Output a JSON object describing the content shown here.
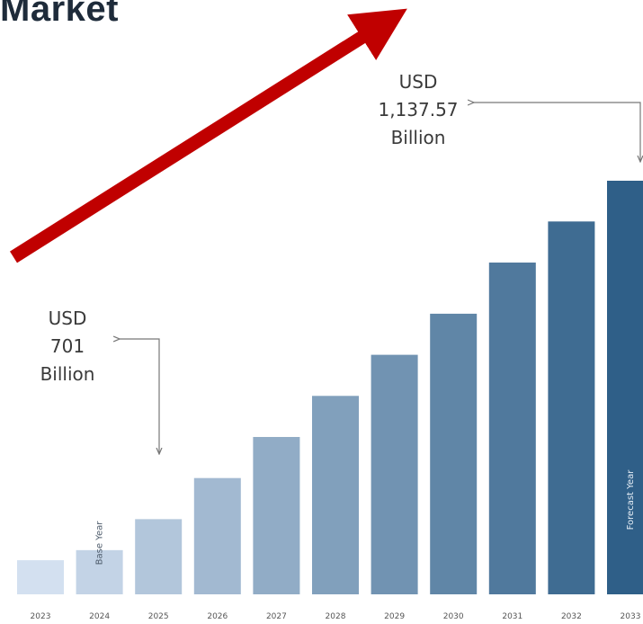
{
  "title": "Market",
  "colors": {
    "arrow": "#c00000",
    "bar_start": "#d3e0f0",
    "bar_end": "#2f5f88",
    "connector": "#777777"
  },
  "chart_data": {
    "type": "bar",
    "title": "Market",
    "xlabel": "",
    "ylabel": "",
    "categories": [
      "2023",
      "2024",
      "2025",
      "2026",
      "2027",
      "2028",
      "2029",
      "2030",
      "2031",
      "2032",
      "2033"
    ],
    "values": [
      648,
      661,
      701,
      754,
      807,
      860,
      913,
      966,
      1032,
      1085,
      1137.57
    ],
    "ylim": [
      604,
      1137.57
    ],
    "unit": "USD Billion",
    "grid": false,
    "legend": "none",
    "bar_labels": [
      {
        "category": "2024",
        "text": "Base Year"
      },
      {
        "category": "2033",
        "text": "Forecast Year"
      }
    ],
    "annotations": [
      {
        "category": "2025",
        "lines": [
          "USD",
          "701",
          "Billion"
        ]
      },
      {
        "category": "2033",
        "lines": [
          "USD",
          "1,137.57",
          "Billion"
        ]
      }
    ]
  }
}
